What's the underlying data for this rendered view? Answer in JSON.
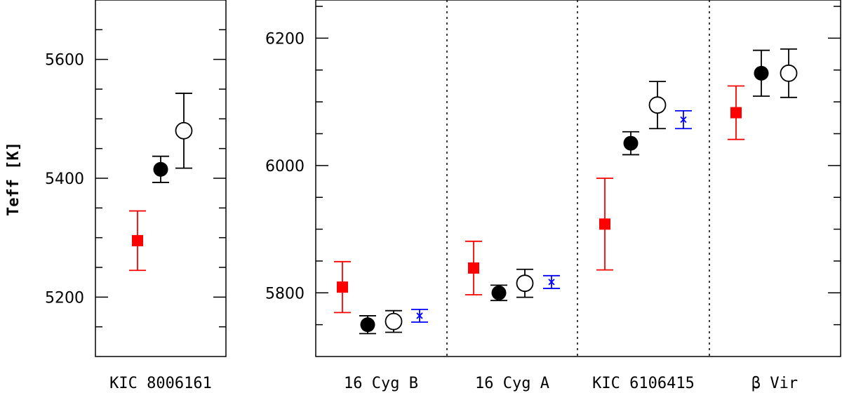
{
  "chart_data": [
    {
      "type": "scatter",
      "panel": "left",
      "ylabel": "Teff [K]",
      "ylim": [
        5100,
        5700
      ],
      "yticks": [
        5200,
        5400,
        5600
      ],
      "groups": [
        {
          "label": "KIC 8006161",
          "points": [
            {
              "style": "red-square",
              "y": 5295,
              "yerr_low": 50,
              "yerr_high": 50
            },
            {
              "style": "filled-circle",
              "y": 5415,
              "yerr_low": 22,
              "yerr_high": 22
            },
            {
              "style": "open-circle",
              "y": 5480,
              "yerr_low": 63,
              "yerr_high": 63
            }
          ]
        }
      ]
    },
    {
      "type": "scatter",
      "panel": "right",
      "ylabel": "",
      "ylim": [
        5700,
        6260
      ],
      "yticks": [
        5800,
        6000,
        6200
      ],
      "groups": [
        {
          "label": "16 Cyg B",
          "points": [
            {
              "style": "red-square",
              "y": 5809,
              "yerr_low": 40,
              "yerr_high": 40
            },
            {
              "style": "filled-circle",
              "y": 5750,
              "yerr_low": 14,
              "yerr_high": 14
            },
            {
              "style": "open-circle",
              "y": 5755,
              "yerr_low": 17,
              "yerr_high": 17
            },
            {
              "style": "blue-cross",
              "y": 5764,
              "yerr_low": 10,
              "yerr_high": 10
            }
          ]
        },
        {
          "label": "16 Cyg A",
          "points": [
            {
              "style": "red-square",
              "y": 5839,
              "yerr_low": 42,
              "yerr_high": 42
            },
            {
              "style": "filled-circle",
              "y": 5800,
              "yerr_low": 12,
              "yerr_high": 12
            },
            {
              "style": "open-circle",
              "y": 5815,
              "yerr_low": 22,
              "yerr_high": 22
            },
            {
              "style": "blue-cross",
              "y": 5817,
              "yerr_low": 10,
              "yerr_high": 10
            }
          ]
        },
        {
          "label": "KIC 6106415",
          "points": [
            {
              "style": "red-square",
              "y": 5908,
              "yerr_low": 72,
              "yerr_high": 72
            },
            {
              "style": "filled-circle",
              "y": 6035,
              "yerr_low": 18,
              "yerr_high": 18
            },
            {
              "style": "open-circle",
              "y": 6095,
              "yerr_low": 37,
              "yerr_high": 37
            },
            {
              "style": "blue-cross",
              "y": 6072,
              "yerr_low": 14,
              "yerr_high": 14
            }
          ]
        },
        {
          "label": "β Vir",
          "points": [
            {
              "style": "red-square",
              "y": 6083,
              "yerr_low": 42,
              "yerr_high": 42
            },
            {
              "style": "filled-circle",
              "y": 6145,
              "yerr_low": 36,
              "yerr_high": 36
            },
            {
              "style": "open-circle",
              "y": 6145,
              "yerr_low": 38,
              "yerr_high": 38
            }
          ]
        }
      ]
    }
  ],
  "colors": {
    "red_square": "#ff0000",
    "blue_cross": "#0000ff",
    "black": "#000000"
  }
}
